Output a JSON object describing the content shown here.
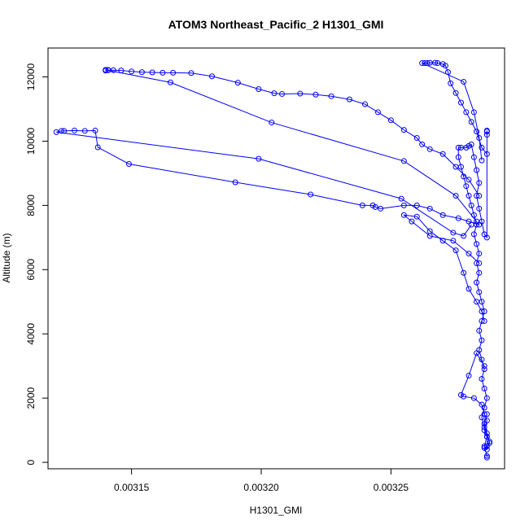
{
  "chart_data": {
    "type": "scatter",
    "title": "ATOM3 Northeast_Pacific_2 H1301_GMI",
    "xlabel": "H1301_GMI",
    "ylabel": "Altitude (m)",
    "xlim": [
      0.0031178,
      0.0032938
    ],
    "ylim": [
      -200,
      12900
    ],
    "x_ticks": [
      0.00315,
      0.0032,
      0.00325
    ],
    "x_tick_labels": [
      "0.00315",
      "0.00320",
      "0.00325"
    ],
    "y_ticks": [
      0,
      2000,
      4000,
      6000,
      8000,
      10000,
      12000
    ],
    "y_tick_labels": [
      "0",
      "2000",
      "4000",
      "6000",
      "8000",
      "10000",
      "12000"
    ],
    "grid": false,
    "marker": "open-circle",
    "connected": true,
    "color": "#0000ff",
    "series": [
      {
        "x": [
          0.003287,
          0.003287,
          0.003286,
          0.003287,
          0.003286,
          0.003285,
          0.003286,
          0.003287,
          0.003286,
          0.003285,
          0.003286,
          0.003285,
          0.003284,
          0.003285,
          0.003284,
          0.003285,
          0.003286,
          0.003285,
          0.003284,
          0.003283,
          0.003284,
          0.003283,
          0.003284,
          0.003283,
          0.003282,
          0.003283,
          0.003282,
          0.003281,
          0.00328,
          0.003279,
          0.003278,
          0.003277,
          0.003276,
          0.003276,
          0.003277,
          0.003279,
          0.00328,
          0.003281,
          0.003282,
          0.003283,
          0.003284,
          0.003283,
          0.003284,
          0.003285,
          0.003286,
          0.003287,
          0.003287,
          0.003287,
          0.003287
        ],
        "y": [
          150,
          200,
          500,
          800,
          1100,
          1400,
          1700,
          2000,
          2300,
          2600,
          2900,
          3200,
          3500,
          3800,
          4100,
          4400,
          4700,
          5000,
          5300,
          5600,
          5900,
          6200,
          6500,
          6800,
          7100,
          7400,
          7700,
          8000,
          8300,
          8600,
          8900,
          9200,
          9500,
          9800,
          9800,
          9800,
          9850,
          9900,
          9500,
          9100,
          8700,
          8300,
          7900,
          7500,
          7100,
          7000,
          10200,
          10300,
          10330
        ]
      },
      {
        "x": [
          0.003287,
          0.003285,
          0.003283,
          0.003281,
          0.003279,
          0.003277,
          0.003275,
          0.003273,
          0.003272,
          0.003271,
          0.00327,
          0.003268,
          0.003267,
          0.003265,
          0.003264,
          0.003263,
          0.003262,
          0.003278,
          0.003282,
          0.003284,
          0.003285
        ],
        "y": [
          9600,
          9800,
          10300,
          10600,
          10900,
          11200,
          11500,
          11800,
          12150,
          12350,
          12400,
          12430,
          12440,
          12440,
          12430,
          12430,
          12430,
          11850,
          10900,
          10100,
          9400
        ]
      },
      {
        "x": [
          0.003284,
          0.00328,
          0.003275,
          0.00327,
          0.003265,
          0.003262,
          0.00326,
          0.003255,
          0.00325,
          0.003245,
          0.00324,
          0.003234,
          0.003227,
          0.003221,
          0.003215,
          0.003208,
          0.003205,
          0.003199,
          0.003191,
          0.003181,
          0.003173,
          0.003166,
          0.003162,
          0.003158,
          0.003154,
          0.00315,
          0.003146,
          0.003143,
          0.003141,
          0.00314,
          0.00314,
          0.003141,
          0.00314,
          0.003165,
          0.003204,
          0.003255,
          0.003275,
          0.003283
        ],
        "y": [
          8300,
          8800,
          9200,
          9600,
          9750,
          9900,
          10100,
          10350,
          10650,
          10900,
          11150,
          11300,
          11400,
          11450,
          11480,
          11470,
          11490,
          11620,
          11820,
          12020,
          12120,
          12130,
          12130,
          12140,
          12150,
          12170,
          12200,
          12210,
          12210,
          12200,
          12200,
          12220,
          12220,
          11830,
          10580,
          9380,
          8300,
          7500
        ]
      },
      {
        "x": [
          0.003284,
          0.00328,
          0.003276,
          0.00327,
          0.003265,
          0.00326,
          0.003255,
          0.003246,
          0.003244,
          0.003243,
          0.003239,
          0.003219,
          0.00319,
          0.003149,
          0.003137,
          0.003136,
          0.003132,
          0.003128,
          0.003124,
          0.003123,
          0.003121,
          0.003199,
          0.003254,
          0.003274,
          0.003278,
          0.003281
        ],
        "y": [
          7400,
          7500,
          7600,
          7700,
          7900,
          8000,
          8000,
          7900,
          7950,
          8000,
          8000,
          8340,
          8720,
          9290,
          9810,
          10330,
          10320,
          10330,
          10320,
          10320,
          10280,
          9450,
          8210,
          7150,
          7050,
          7400
        ]
      },
      {
        "x": [
          0.003284,
          0.00328,
          0.003274,
          0.003265,
          0.003258,
          0.003255,
          0.00326,
          0.003265,
          0.00327,
          0.003275,
          0.003278,
          0.00328,
          0.003283,
          0.003285,
          0.003286
        ],
        "y": [
          6200,
          6500,
          6900,
          7050,
          7500,
          7700,
          7650,
          7200,
          6900,
          6600,
          5900,
          5400,
          5000,
          4700,
          4400
        ]
      },
      {
        "x": [
          0.003286,
          0.003283,
          0.00328,
          0.003277,
          0.003278,
          0.003282,
          0.003285,
          0.003286,
          0.003287,
          0.003286,
          0.003287,
          0.003288,
          0.003287,
          0.003286,
          0.003287,
          0.003288,
          0.003287,
          0.003286,
          0.003287
        ],
        "y": [
          3000,
          3400,
          2700,
          2100,
          2050,
          2000,
          1800,
          1500,
          1300,
          1000,
          800,
          650,
          500,
          450,
          400,
          600,
          900,
          1200,
          1500
        ]
      }
    ]
  }
}
